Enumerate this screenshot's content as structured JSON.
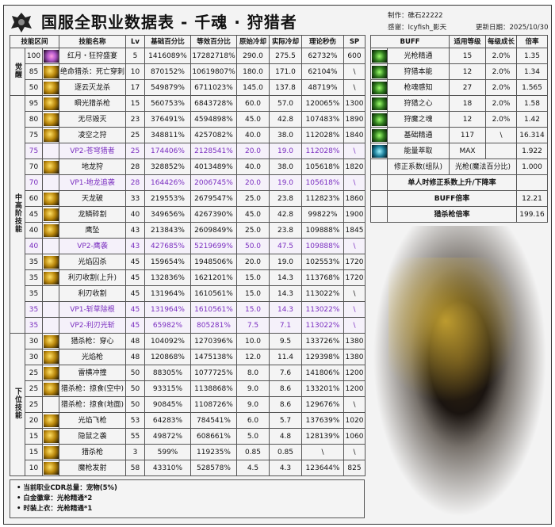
{
  "header": {
    "title": "国服全职业数据表  -  千魂 · 狩猎者",
    "author": "制作：礁石22222",
    "thanks": "感谢：Icyfish_影天",
    "updated": "更新日期：2025/10/30"
  },
  "main_headers": [
    "技能区间",
    "技能名称",
    "Lv",
    "基础百分比",
    "等效百分比",
    "原始冷却",
    "实际冷却",
    "理论秒伤",
    "SP"
  ],
  "groups": [
    {
      "label": "觉醒",
      "rows": 3
    },
    {
      "label": "中高阶技能",
      "rows": 15
    },
    {
      "label": "下位技能",
      "rows": 9
    }
  ],
  "skills": [
    {
      "lvl": "100",
      "name": "红月・狂狩盛宴",
      "lv": "5",
      "base": "1416089%",
      "eq": "17282718%",
      "cd": "290.0",
      "acd": "275.5",
      "dps": "62732%",
      "sp": "600",
      "icon": "aw"
    },
    {
      "lvl": "85",
      "name": "绝命猎杀：死亡穿刺",
      "lv": "10",
      "base": "870152%",
      "eq": "10619807%",
      "cd": "180.0",
      "acd": "171.0",
      "dps": "62104%",
      "sp": "\\",
      "icon": "gold"
    },
    {
      "lvl": "50",
      "name": "逐云灭龙杀",
      "lv": "17",
      "base": "549879%",
      "eq": "6711023%",
      "cd": "145.0",
      "acd": "137.8",
      "dps": "48719%",
      "sp": "\\",
      "icon": "gold"
    },
    {
      "lvl": "95",
      "name": "瞬光猎杀枪",
      "lv": "15",
      "base": "560753%",
      "eq": "6843728%",
      "cd": "60.0",
      "acd": "57.0",
      "dps": "120065%",
      "sp": "1300",
      "icon": "gold"
    },
    {
      "lvl": "80",
      "name": "无尽毁灭",
      "lv": "23",
      "base": "376491%",
      "eq": "4594898%",
      "cd": "45.0",
      "acd": "42.8",
      "dps": "107483%",
      "sp": "1890",
      "icon": "gold"
    },
    {
      "lvl": "75",
      "name": "凌空之狩",
      "lv": "25",
      "base": "348811%",
      "eq": "4257082%",
      "cd": "40.0",
      "acd": "38.0",
      "dps": "112028%",
      "sp": "1840",
      "icon": "gold"
    },
    {
      "lvl": "75",
      "name": "VP2-苍穹猎者",
      "lv": "25",
      "base": "174406%",
      "eq": "2128541%",
      "cd": "20.0",
      "acd": "19.0",
      "dps": "112028%",
      "sp": "\\",
      "vp": true
    },
    {
      "lvl": "70",
      "name": "地龙狩",
      "lv": "28",
      "base": "328852%",
      "eq": "4013489%",
      "cd": "40.0",
      "acd": "38.0",
      "dps": "105618%",
      "sp": "1820",
      "icon": "gold"
    },
    {
      "lvl": "70",
      "name": "VP1-地龙追袭",
      "lv": "28",
      "base": "164426%",
      "eq": "2006745%",
      "cd": "20.0",
      "acd": "19.0",
      "dps": "105618%",
      "sp": "\\",
      "vp": true
    },
    {
      "lvl": "60",
      "name": "天龙破",
      "lv": "33",
      "base": "219553%",
      "eq": "2679547%",
      "cd": "25.0",
      "acd": "23.8",
      "dps": "112823%",
      "sp": "1860",
      "icon": "gold"
    },
    {
      "lvl": "45",
      "name": "龙鳞碎割",
      "lv": "40",
      "base": "349656%",
      "eq": "4267390%",
      "cd": "45.0",
      "acd": "42.8",
      "dps": "99822%",
      "sp": "1900",
      "icon": "gold"
    },
    {
      "lvl": "40",
      "name": "鹰坠",
      "lv": "43",
      "base": "213843%",
      "eq": "2609849%",
      "cd": "25.0",
      "acd": "23.8",
      "dps": "109888%",
      "sp": "1845",
      "icon": "gold"
    },
    {
      "lvl": "40",
      "name": "VP2-鹰袭",
      "lv": "43",
      "base": "427685%",
      "eq": "5219699%",
      "cd": "50.0",
      "acd": "47.5",
      "dps": "109888%",
      "sp": "\\",
      "vp": true
    },
    {
      "lvl": "35",
      "name": "光焰囚杀",
      "lv": "45",
      "base": "159654%",
      "eq": "1948506%",
      "cd": "20.0",
      "acd": "19.0",
      "dps": "102553%",
      "sp": "1720",
      "icon": "gold"
    },
    {
      "lvl": "35",
      "name": "利刃收割(上升)",
      "lv": "45",
      "base": "132836%",
      "eq": "1621201%",
      "cd": "15.0",
      "acd": "14.3",
      "dps": "113768%",
      "sp": "1720",
      "icon": "gold"
    },
    {
      "lvl": "35",
      "name": "利刃收割",
      "lv": "45",
      "base": "131964%",
      "eq": "1610561%",
      "cd": "15.0",
      "acd": "14.3",
      "dps": "113022%",
      "sp": "\\"
    },
    {
      "lvl": "35",
      "name": "VP1-斩草除根",
      "lv": "45",
      "base": "131964%",
      "eq": "1610561%",
      "cd": "15.0",
      "acd": "14.3",
      "dps": "113022%",
      "sp": "\\",
      "vp": true
    },
    {
      "lvl": "35",
      "name": "VP2-利刃光斩",
      "lv": "45",
      "base": "65982%",
      "eq": "805281%",
      "cd": "7.5",
      "acd": "7.1",
      "dps": "113022%",
      "sp": "\\",
      "vp": true
    },
    {
      "lvl": "30",
      "name": "猎杀枪：穿心",
      "lv": "48",
      "base": "104092%",
      "eq": "1270396%",
      "cd": "10.0",
      "acd": "9.5",
      "dps": "133726%",
      "sp": "1380",
      "icon": "gold"
    },
    {
      "lvl": "30",
      "name": "光焰枪",
      "lv": "48",
      "base": "120868%",
      "eq": "1475138%",
      "cd": "12.0",
      "acd": "11.4",
      "dps": "129398%",
      "sp": "1380",
      "icon": "gold"
    },
    {
      "lvl": "25",
      "name": "雷横冲撞",
      "lv": "50",
      "base": "88305%",
      "eq": "1077725%",
      "cd": "8.0",
      "acd": "7.6",
      "dps": "141806%",
      "sp": "1200",
      "icon": "gold"
    },
    {
      "lvl": "25",
      "name": "猎杀枪：掠食(空中)",
      "lv": "50",
      "base": "93315%",
      "eq": "1138868%",
      "cd": "9.0",
      "acd": "8.6",
      "dps": "133201%",
      "sp": "1200",
      "icon": "gold"
    },
    {
      "lvl": "25",
      "name": "猎杀枪：掠食(地面)",
      "lv": "50",
      "base": "90845%",
      "eq": "1108726%",
      "cd": "9.0",
      "acd": "8.6",
      "dps": "129676%",
      "sp": "\\"
    },
    {
      "lvl": "20",
      "name": "光焰飞枪",
      "lv": "53",
      "base": "64283%",
      "eq": "784541%",
      "cd": "6.0",
      "acd": "5.7",
      "dps": "137639%",
      "sp": "1020",
      "icon": "gold"
    },
    {
      "lvl": "15",
      "name": "隐鼠之袭",
      "lv": "55",
      "base": "49872%",
      "eq": "608661%",
      "cd": "5.0",
      "acd": "4.8",
      "dps": "128139%",
      "sp": "1060",
      "icon": "gold"
    },
    {
      "lvl": "15",
      "name": "猎杀枪",
      "lv": "3",
      "base": "599%",
      "eq": "119235%",
      "cd": "0.85",
      "acd": "0.85",
      "dps": "\\",
      "sp": "\\",
      "icon": "gold"
    },
    {
      "lvl": "10",
      "name": "魔枪发射",
      "lv": "58",
      "base": "43310%",
      "eq": "528578%",
      "cd": "4.5",
      "acd": "4.3",
      "dps": "123644%",
      "sp": "825",
      "icon": "gold"
    }
  ],
  "buff_headers": [
    "BUFF",
    "适用等级",
    "每级成长",
    "倍率"
  ],
  "buffs": [
    {
      "name": "光枪精通",
      "lvl": "15",
      "grow": "2.0%",
      "rate": "1.35",
      "icon": "green"
    },
    {
      "name": "狩猎本能",
      "lvl": "12",
      "grow": "2.0%",
      "rate": "1.34",
      "icon": "green"
    },
    {
      "name": "枪魂感知",
      "lvl": "27",
      "grow": "2.0%",
      "rate": "1.565",
      "icon": "green"
    },
    {
      "name": "狩猎之心",
      "lvl": "18",
      "grow": "2.0%",
      "rate": "1.58",
      "icon": "green"
    },
    {
      "name": "狩魔之魂",
      "lvl": "12",
      "grow": "2.0%",
      "rate": "1.42",
      "icon": "green"
    },
    {
      "name": "基础精通",
      "lvl": "117",
      "grow": "\\",
      "rate": "16.314",
      "icon": "green"
    },
    {
      "name": "能量萃取",
      "lvl": "MAX",
      "grow": "",
      "rate": "1.922",
      "icon": "cyan"
    }
  ],
  "correction": {
    "label": "修正系数(组队)",
    "type": "光枪(魔法百分比)",
    "value": "1.000"
  },
  "solo_label": "单人时修正系数上升/下降率",
  "buff_rate": {
    "label": "BUFF倍率",
    "value": "12.21"
  },
  "hunt_rate": {
    "label": "猎杀枪倍率",
    "value": "199.16"
  },
  "notes": [
    "• 当前职业CDR总量：宠物(5%)",
    "• 白金徽章：光枪精通*2",
    "• 时装上衣：光枪精通*1"
  ],
  "colors": {
    "vp_text": "#7b2fc0"
  }
}
